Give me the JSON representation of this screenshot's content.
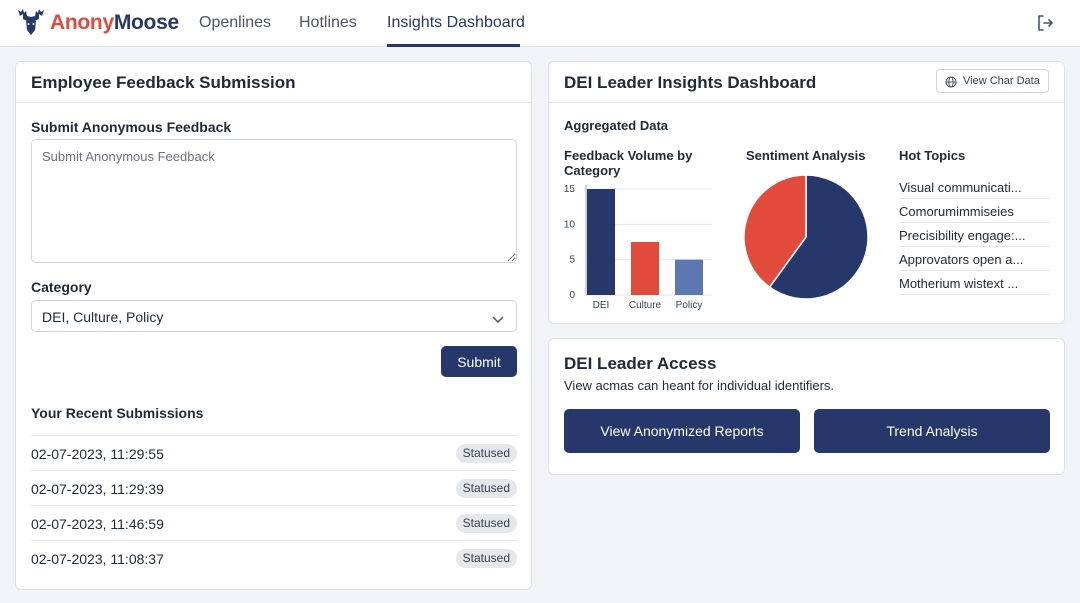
{
  "brand": {
    "part1": "Anony",
    "part2": "Moose",
    "accent": "#e24a3b",
    "primary": "#26376b"
  },
  "nav": {
    "tabs": [
      {
        "label": "Openlines"
      },
      {
        "label": "Hotlines"
      },
      {
        "label": "Insights Dashboard",
        "active": true
      }
    ],
    "logout_icon": "logout-icon"
  },
  "feedback": {
    "title": "Employee Feedback Submission",
    "textarea_label": "Submit Anonymous Feedback",
    "textarea_placeholder": "Submit Anonymous Feedback",
    "category_label": "Category",
    "category_value": "DEI, Culture, Policy",
    "submit_label": "Submit",
    "recent_title": "Your Recent Submissions",
    "submissions": [
      {
        "timestamp": "02-07-2023, 11:29:55",
        "status": "Statused"
      },
      {
        "timestamp": "02-07-2023, 11:29:39",
        "status": "Statused"
      },
      {
        "timestamp": "02-07-2023, 11:46:59",
        "status": "Statused"
      },
      {
        "timestamp": "02-07-2023, 11:08:37",
        "status": "Statused"
      }
    ]
  },
  "insights": {
    "title": "DEI Leader Insights Dashboard",
    "view_button": "View Char Data",
    "aggregated_label": "Aggregated Data",
    "bar_title": "Feedback Volume by Category",
    "pie_title": "Sentiment Analysis",
    "topics_title": "Hot Topics",
    "topics": [
      "Visual communicati...",
      "Comorumimmiseies",
      "Precisibility engage:...",
      "Approvators open a...",
      "Motherium wistext ..."
    ]
  },
  "chart_data": [
    {
      "type": "bar",
      "title": "Feedback Volume by Category",
      "categories": [
        "DEI",
        "Culture",
        "Policy"
      ],
      "values": [
        15,
        7.5,
        5
      ],
      "colors": [
        "#26376b",
        "#e24a3b",
        "#5b78b0"
      ],
      "yticks": [
        0,
        5,
        10,
        15
      ],
      "ylim": [
        0,
        15
      ]
    },
    {
      "type": "pie",
      "title": "Sentiment Analysis",
      "values": [
        60,
        40
      ],
      "colors": [
        "#26376b",
        "#e24a3b"
      ]
    }
  ],
  "access": {
    "title": "DEI Leader Access",
    "description": "View acmas can heant for individual identifiers.",
    "button1": "View Anonymized Reports",
    "button2": "Trend Analysis"
  }
}
